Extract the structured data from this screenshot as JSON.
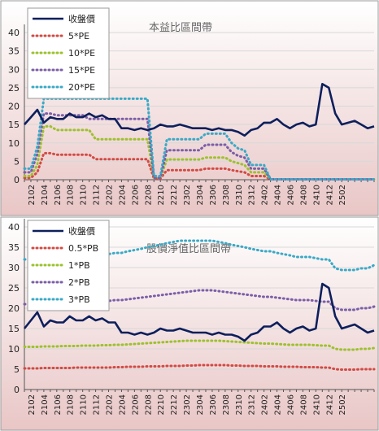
{
  "chart_data": [
    {
      "type": "line",
      "title": "本益比區間帶",
      "xlabel": "",
      "ylabel": "",
      "ylim": [
        0,
        40
      ],
      "yticks": [
        0,
        5,
        10,
        15,
        20,
        25,
        30,
        35,
        40
      ],
      "x_tick_labels": [
        "2102",
        "2104",
        "2106",
        "2108",
        "2110",
        "2112",
        "2202",
        "2204",
        "2206",
        "2208",
        "2210",
        "2212",
        "2302",
        "2304",
        "2306",
        "2308",
        "2310",
        "2312",
        "2402",
        "2404",
        "2406",
        "2408",
        "2410",
        "2412",
        "2502"
      ],
      "legend_position": "top-left",
      "series": [
        {
          "name": "收盤價",
          "color": "#0d1f5c",
          "values": [
            15,
            17,
            19,
            15.5,
            17,
            16.5,
            16.5,
            18,
            17,
            17,
            18,
            17,
            17.5,
            16.5,
            16.5,
            14,
            14,
            13.5,
            14,
            13.5,
            14,
            15,
            14.5,
            14.5,
            15,
            14.5,
            14,
            14,
            14,
            13.5,
            14,
            13.5,
            13.5,
            13,
            12,
            13.5,
            14,
            15.5,
            15.5,
            16.5,
            15,
            14,
            15,
            15.5,
            14.5,
            15,
            26,
            25,
            18,
            15,
            15.5,
            16,
            15,
            14,
            14.5
          ]
        },
        {
          "name": "5*PE",
          "color": "#d24a44",
          "values": [
            0.5,
            0.5,
            2,
            7.2,
            7.2,
            6.8,
            6.8,
            6.8,
            6.8,
            6.8,
            6.8,
            5.6,
            5.6,
            5.6,
            5.6,
            5.6,
            5.6,
            5.6,
            5.6,
            5.6,
            0.3,
            0.3,
            2.6,
            2.6,
            2.6,
            2.6,
            2.6,
            2.6,
            3,
            3,
            3,
            3,
            2.6,
            2.3,
            2,
            1,
            1,
            1,
            0.1,
            0.1,
            0.1,
            0.1,
            0.1,
            0.1,
            0.1,
            0.1,
            0.1,
            0.1,
            0.1,
            0.1,
            0.1,
            0.1,
            0.1,
            0.1,
            0.1
          ]
        },
        {
          "name": "10*PE",
          "color": "#9dc12e",
          "values": [
            1,
            1,
            4,
            14.5,
            14.5,
            13.5,
            13.5,
            13.5,
            13.5,
            13.5,
            13.5,
            11,
            11,
            11,
            11,
            11,
            11,
            11,
            11,
            11,
            0.5,
            0.5,
            5.5,
            5.5,
            5.5,
            5.5,
            5.5,
            5.5,
            6,
            6,
            6,
            6,
            5,
            4.5,
            4,
            2,
            2,
            2,
            0.1,
            0.1,
            0.1,
            0.1,
            0.1,
            0.1,
            0.1,
            0.1,
            0.1,
            0.1,
            0.1,
            0.1,
            0.1,
            0.1,
            0.1,
            0.1,
            0.1
          ]
        },
        {
          "name": "15*PE",
          "color": "#7b5ea8",
          "values": [
            2,
            2,
            7,
            18,
            18,
            17.5,
            17.5,
            17.5,
            17.5,
            17.5,
            16.5,
            16.5,
            16.5,
            16.5,
            16.5,
            16.5,
            16.5,
            16.5,
            16.5,
            16.5,
            0.5,
            0.5,
            8,
            8,
            8,
            8,
            8,
            8,
            9.5,
            9.5,
            9.5,
            9.5,
            7.5,
            6.5,
            6,
            3,
            3,
            3,
            0.1,
            0.1,
            0.1,
            0.1,
            0.1,
            0.1,
            0.1,
            0.1,
            0.1,
            0.1,
            0.1,
            0.1,
            0.1,
            0.1,
            0.1,
            0.1,
            0.1
          ]
        },
        {
          "name": "20*PE",
          "color": "#3aa9c6",
          "values": [
            3,
            3,
            9,
            22,
            22,
            22,
            22,
            22,
            22,
            22,
            22,
            22,
            22,
            22,
            22,
            22,
            22,
            22,
            22,
            22,
            1,
            1,
            11,
            11,
            11,
            11,
            11,
            11,
            12.5,
            12.5,
            12.5,
            12.5,
            10,
            8.5,
            8,
            4,
            4,
            4,
            0.1,
            0.1,
            0.1,
            0.1,
            0.1,
            0.1,
            0.1,
            0.1,
            0.1,
            0.1,
            0.1,
            0.1,
            0.1,
            0.1,
            0.1,
            0.1,
            0.1
          ]
        }
      ]
    },
    {
      "type": "line",
      "title": "股價淨值比區間帶",
      "xlabel": "",
      "ylabel": "",
      "ylim": [
        0,
        40
      ],
      "yticks": [
        0,
        5,
        10,
        15,
        20,
        25,
        30,
        35,
        40
      ],
      "x_tick_labels": [
        "2102",
        "2104",
        "2106",
        "2108",
        "2110",
        "2112",
        "2202",
        "2204",
        "2206",
        "2208",
        "2210",
        "2212",
        "2302",
        "2304",
        "2306",
        "2308",
        "2310",
        "2312",
        "2402",
        "2404",
        "2406",
        "2408",
        "2410",
        "2412",
        "2502"
      ],
      "legend_position": "top-left",
      "series": [
        {
          "name": "收盤價",
          "color": "#0d1f5c",
          "values": [
            15,
            17,
            19,
            15.5,
            17,
            16.5,
            16.5,
            18,
            17,
            17,
            18,
            17,
            17.5,
            16.5,
            16.5,
            14,
            14,
            13.5,
            14,
            13.5,
            14,
            15,
            14.5,
            14.5,
            15,
            14.5,
            14,
            14,
            14,
            13.5,
            14,
            13.5,
            13.5,
            13,
            12,
            13.5,
            14,
            15.5,
            15.5,
            16.5,
            15,
            14,
            15,
            15.5,
            14.5,
            15,
            26,
            25,
            18,
            15,
            15.5,
            16,
            15,
            14,
            14.5
          ]
        },
        {
          "name": "0.5*PB",
          "color": "#d24a44",
          "values": [
            5.2,
            5.2,
            5.2,
            5.3,
            5.3,
            5.3,
            5.3,
            5.3,
            5.4,
            5.4,
            5.4,
            5.4,
            5.4,
            5.4,
            5.5,
            5.5,
            5.6,
            5.6,
            5.6,
            5.7,
            5.7,
            5.7,
            5.8,
            5.8,
            5.8,
            5.9,
            5.9,
            6,
            6,
            6,
            6,
            6,
            5.9,
            5.9,
            5.8,
            5.8,
            5.8,
            5.7,
            5.7,
            5.7,
            5.6,
            5.6,
            5.6,
            5.5,
            5.5,
            5.5,
            5.4,
            5.4,
            5,
            4.9,
            4.9,
            4.9,
            5,
            5,
            5
          ]
        },
        {
          "name": "1*PB",
          "color": "#9dc12e",
          "values": [
            10.5,
            10.5,
            10.5,
            10.6,
            10.6,
            10.6,
            10.7,
            10.7,
            10.7,
            10.8,
            10.8,
            10.8,
            10.9,
            10.9,
            11,
            11,
            11.1,
            11.2,
            11.3,
            11.4,
            11.5,
            11.6,
            11.7,
            11.8,
            11.9,
            12,
            12,
            12,
            12,
            12,
            12,
            11.9,
            11.8,
            11.7,
            11.6,
            11.5,
            11.4,
            11.3,
            11.3,
            11.2,
            11.1,
            11,
            11,
            11,
            11,
            10.9,
            10.8,
            10.8,
            10,
            9.8,
            9.8,
            9.8,
            10,
            10,
            10.2
          ]
        },
        {
          "name": "2*PB",
          "color": "#7b5ea8",
          "values": [
            21,
            21,
            21,
            21.2,
            21.2,
            21.2,
            21.4,
            21.4,
            21.4,
            21.6,
            21.6,
            21.6,
            21.8,
            21.8,
            22,
            22,
            22.2,
            22.4,
            22.6,
            22.8,
            23,
            23.2,
            23.4,
            23.6,
            23.8,
            24,
            24.2,
            24.4,
            24.4,
            24.4,
            24.2,
            24,
            23.8,
            23.6,
            23.4,
            23.2,
            23,
            22.8,
            22.8,
            22.6,
            22.4,
            22.2,
            22,
            22,
            22,
            21.8,
            21.6,
            21.6,
            20,
            19.6,
            19.6,
            19.6,
            20,
            20,
            20.4
          ]
        },
        {
          "name": "3*PB",
          "color": "#3aa9c6",
          "values": [
            32,
            32,
            32,
            32.3,
            32.3,
            32.3,
            32.6,
            32.6,
            32.6,
            33,
            33,
            33,
            33.3,
            33.3,
            33.6,
            33.6,
            34,
            34.3,
            34.6,
            35,
            35.3,
            35.6,
            36,
            36.3,
            36.6,
            36.6,
            36.6,
            36.6,
            36.6,
            36.6,
            36.3,
            36,
            35.6,
            35.3,
            35,
            34.6,
            34.3,
            34,
            34,
            33.6,
            33.3,
            33,
            32.6,
            32.6,
            32.6,
            32.3,
            32,
            32,
            29.8,
            29.4,
            29.4,
            29.4,
            29.8,
            29.8,
            30.6
          ]
        }
      ]
    }
  ]
}
